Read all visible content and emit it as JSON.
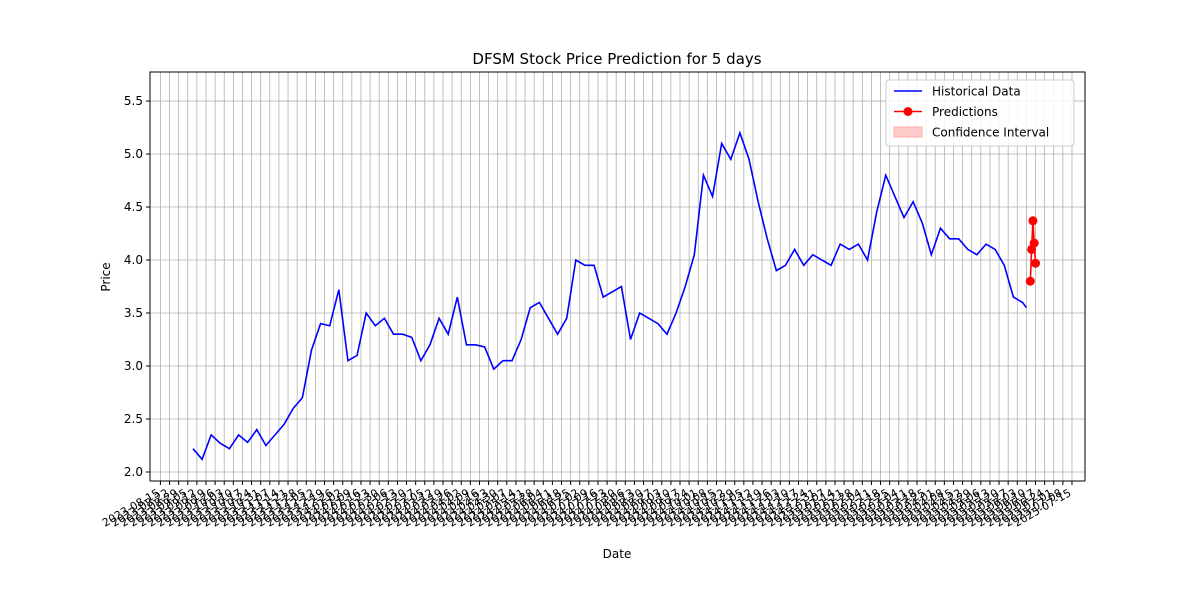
{
  "chart_data": {
    "type": "line",
    "title": "DFSM Stock Price Prediction for 5 days",
    "xlabel": "Date",
    "ylabel": "Price",
    "series": [
      {
        "name": "Historical Data",
        "color": "#0000ff",
        "marker": false,
        "x": [
          "2023-09-09",
          "2023-09-16",
          "2023-09-23",
          "2023-09-30",
          "2023-10-07",
          "2023-10-14",
          "2023-10-21",
          "2023-10-28",
          "2023-11-04",
          "2023-11-11",
          "2023-11-18",
          "2023-11-25",
          "2023-12-02",
          "2023-12-09",
          "2023-12-16",
          "2023-12-23",
          "2023-12-30",
          "2024-01-06",
          "2024-01-13",
          "2024-01-20",
          "2024-01-27",
          "2024-02-03",
          "2024-02-10",
          "2024-02-17",
          "2024-02-24",
          "2024-03-02",
          "2024-03-09",
          "2024-03-16",
          "2024-03-23",
          "2024-03-30",
          "2024-04-06",
          "2024-04-13",
          "2024-04-20",
          "2024-04-27",
          "2024-05-04",
          "2024-05-11",
          "2024-05-18",
          "2024-05-25",
          "2024-06-01",
          "2024-06-08",
          "2024-06-15",
          "2024-06-22",
          "2024-06-29",
          "2024-07-06",
          "2024-07-13",
          "2024-07-20",
          "2024-07-27",
          "2024-08-03",
          "2024-08-10",
          "2024-08-17",
          "2024-08-24",
          "2024-08-31",
          "2024-09-07",
          "2024-09-14",
          "2024-09-21",
          "2024-09-28",
          "2024-10-05",
          "2024-10-12",
          "2024-10-19",
          "2024-10-26",
          "2024-11-02",
          "2024-11-09",
          "2024-11-16",
          "2024-11-23",
          "2024-11-30",
          "2024-12-07",
          "2024-12-14",
          "2024-12-21",
          "2024-12-28",
          "2025-01-04",
          "2025-01-11",
          "2025-01-18",
          "2025-01-25",
          "2025-02-01",
          "2025-02-08",
          "2025-02-15",
          "2025-02-22",
          "2025-03-01",
          "2025-03-08",
          "2025-03-15",
          "2025-03-22",
          "2025-03-29",
          "2025-04-05",
          "2025-04-12",
          "2025-04-19",
          "2025-04-26",
          "2025-05-03",
          "2025-05-10",
          "2025-05-17",
          "2025-05-24",
          "2025-05-31",
          "2025-06-07",
          "2025-06-10"
        ],
        "values": [
          2.22,
          2.12,
          2.35,
          2.27,
          2.22,
          2.35,
          2.28,
          2.4,
          2.25,
          2.35,
          2.45,
          2.6,
          2.7,
          3.15,
          3.4,
          3.38,
          3.72,
          3.05,
          3.1,
          3.5,
          3.38,
          3.45,
          3.3,
          3.3,
          3.27,
          3.05,
          3.2,
          3.45,
          3.3,
          3.65,
          3.2,
          3.2,
          3.18,
          2.97,
          3.05,
          3.05,
          3.25,
          3.55,
          3.6,
          3.45,
          3.3,
          3.45,
          4.0,
          3.95,
          3.95,
          3.65,
          3.7,
          3.75,
          3.25,
          3.5,
          3.45,
          3.4,
          3.3,
          3.5,
          3.75,
          4.05,
          4.8,
          4.6,
          5.1,
          4.95,
          5.2,
          4.95,
          4.55,
          4.2,
          3.9,
          3.95,
          4.1,
          3.95,
          4.05,
          4.0,
          3.95,
          4.15,
          4.1,
          4.15,
          4.0,
          4.45,
          4.8,
          4.6,
          4.4,
          4.55,
          4.35,
          4.05,
          4.3,
          4.2,
          4.2,
          4.1,
          4.05,
          4.15,
          4.1,
          3.95,
          3.65,
          3.6,
          3.55
        ]
      },
      {
        "name": "Predictions",
        "color": "#ff0000",
        "marker": true,
        "x": [
          "2025-06-13",
          "2025-06-14",
          "2025-06-15",
          "2025-06-16",
          "2025-06-17"
        ],
        "values": [
          3.8,
          4.1,
          4.37,
          4.16,
          3.97
        ]
      },
      {
        "name": "Confidence Interval",
        "color": "#ffb3b3",
        "kind": "band"
      }
    ],
    "xlim": [
      "2023-08-07",
      "2025-07-25"
    ],
    "xticks": [
      "2023-08-15",
      "2023-08-22",
      "2023-08-29",
      "2023-09-05",
      "2023-09-12",
      "2023-09-19",
      "2023-09-26",
      "2023-10-03",
      "2023-10-10",
      "2023-10-17",
      "2023-10-24",
      "2023-10-31",
      "2023-11-07",
      "2023-11-14",
      "2023-11-21",
      "2023-11-28",
      "2023-12-05",
      "2023-12-12",
      "2023-12-19",
      "2023-12-26",
      "2024-01-02",
      "2024-01-09",
      "2024-01-16",
      "2024-01-23",
      "2024-01-30",
      "2024-02-06",
      "2024-02-13",
      "2024-02-20",
      "2024-02-27",
      "2024-03-05",
      "2024-03-12",
      "2024-03-19",
      "2024-03-26",
      "2024-04-02",
      "2024-04-09",
      "2024-04-16",
      "2024-04-23",
      "2024-04-30",
      "2024-05-07",
      "2024-05-14",
      "2024-05-21",
      "2024-05-28",
      "2024-06-04",
      "2024-06-11",
      "2024-06-18",
      "2024-06-25",
      "2024-07-02",
      "2024-07-09",
      "2024-07-16",
      "2024-07-23",
      "2024-07-30",
      "2024-08-06",
      "2024-08-13",
      "2024-08-20",
      "2024-08-27",
      "2024-09-03",
      "2024-09-10",
      "2024-09-17",
      "2024-09-24",
      "2024-10-01",
      "2024-10-08",
      "2024-10-15",
      "2024-10-22",
      "2024-10-29",
      "2024-11-05",
      "2024-11-12",
      "2024-11-19",
      "2024-11-26",
      "2024-12-03",
      "2024-12-10",
      "2024-12-17",
      "2024-12-24",
      "2024-12-31",
      "2025-01-07",
      "2025-01-14",
      "2025-01-21",
      "2025-01-28",
      "2025-02-04",
      "2025-02-11",
      "2025-02-18",
      "2025-02-25",
      "2025-03-04",
      "2025-03-11",
      "2025-03-18",
      "2025-03-25",
      "2025-04-01",
      "2025-04-08",
      "2025-04-15",
      "2025-04-22",
      "2025-04-29",
      "2025-05-06",
      "2025-05-13",
      "2025-05-20",
      "2025-05-27",
      "2025-06-03",
      "2025-06-10",
      "2025-06-17",
      "2025-06-24",
      "2025-07-01",
      "2025-07-08",
      "2025-07-15"
    ],
    "ylim": [
      1.915,
      5.774
    ],
    "yticks": [
      {
        "value": 2,
        "label": "2.0"
      },
      2.5,
      {
        "value": 3,
        "label": "3.0"
      },
      3.5,
      {
        "value": 4,
        "label": "4.0"
      },
      4.5,
      {
        "value": 5,
        "label": "5.0"
      },
      5.5
    ],
    "grid": true,
    "legend": "upper right"
  }
}
